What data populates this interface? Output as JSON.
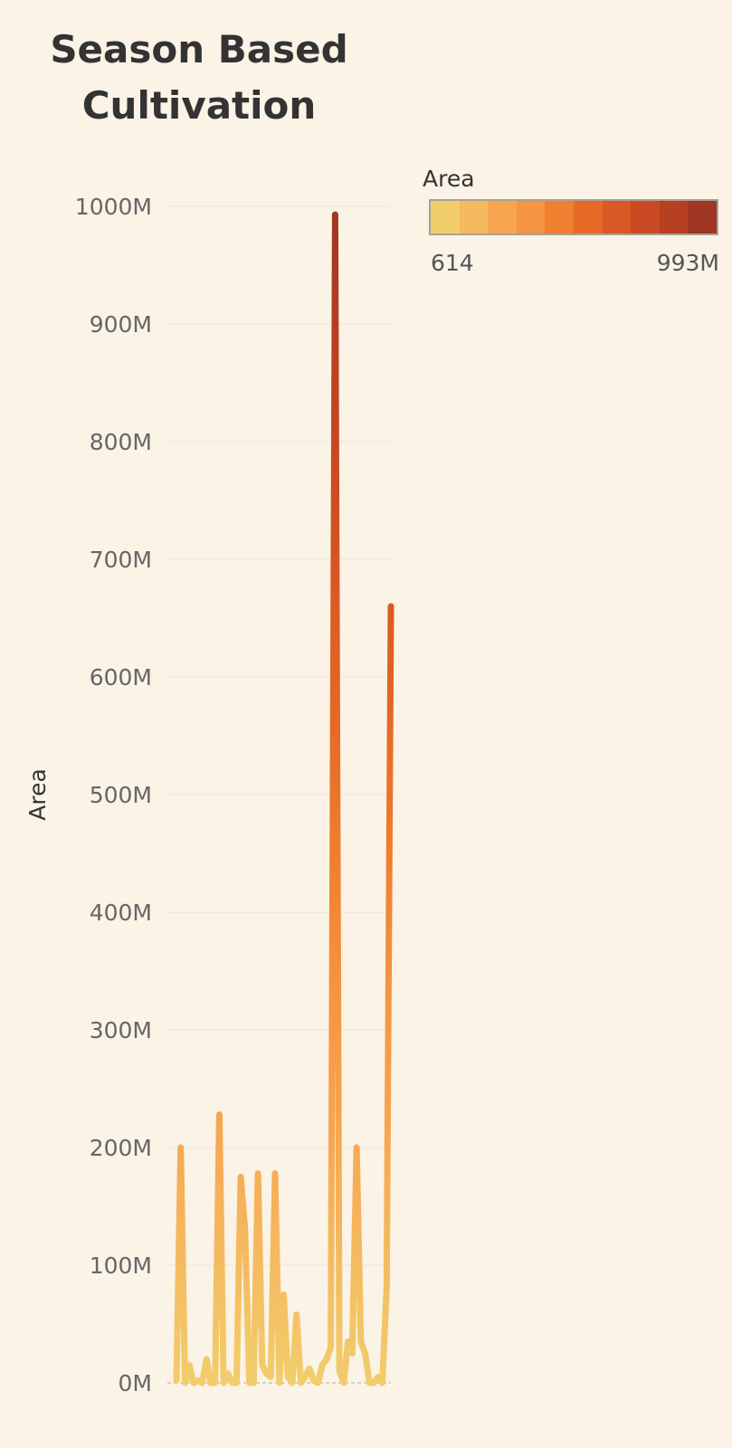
{
  "title_line1": "Season Based",
  "title_line2": "Cultivation",
  "legend": {
    "title": "Area",
    "min_label": "614",
    "max_label": "993M",
    "colors": [
      "#f2cd6b",
      "#f5b960",
      "#f6a54f",
      "#f59442",
      "#f07f2f",
      "#e56a26",
      "#d95a24",
      "#c94a22",
      "#b73f22",
      "#9f3523"
    ]
  },
  "chart_data": {
    "type": "line",
    "title": "Season Based Cultivation",
    "ylabel": "Area",
    "xlabel": "",
    "ylim": [
      0,
      1000000000
    ],
    "yticks": [
      {
        "value": 0,
        "label": "0M"
      },
      {
        "value": 100000000,
        "label": "100M"
      },
      {
        "value": 200000000,
        "label": "200M"
      },
      {
        "value": 300000000,
        "label": "300M"
      },
      {
        "value": 400000000,
        "label": "400M"
      },
      {
        "value": 500000000,
        "label": "500M"
      },
      {
        "value": 600000000,
        "label": "600M"
      },
      {
        "value": 700000000,
        "label": "700M"
      },
      {
        "value": 800000000,
        "label": "800M"
      },
      {
        "value": 900000000,
        "label": "900M"
      },
      {
        "value": 1000000000,
        "label": "1000M"
      }
    ],
    "grid": true,
    "color_scale": {
      "min": 614,
      "max": 993000000
    },
    "values": [
      2000000,
      200000000,
      0,
      15000000,
      0,
      2000000,
      0,
      20000000,
      0,
      0,
      228000000,
      0,
      8000000,
      0,
      0,
      175000000,
      130000000,
      0,
      0,
      178000000,
      15000000,
      8000000,
      5000000,
      178000000,
      0,
      75000000,
      5000000,
      0,
      58000000,
      0,
      5000000,
      12000000,
      2000000,
      0,
      15000000,
      20000000,
      30000000,
      993000000,
      10000000,
      0,
      35000000,
      25000000,
      200000000,
      35000000,
      25000000,
      0,
      0,
      5000000,
      0,
      80000000,
      660000000
    ]
  }
}
